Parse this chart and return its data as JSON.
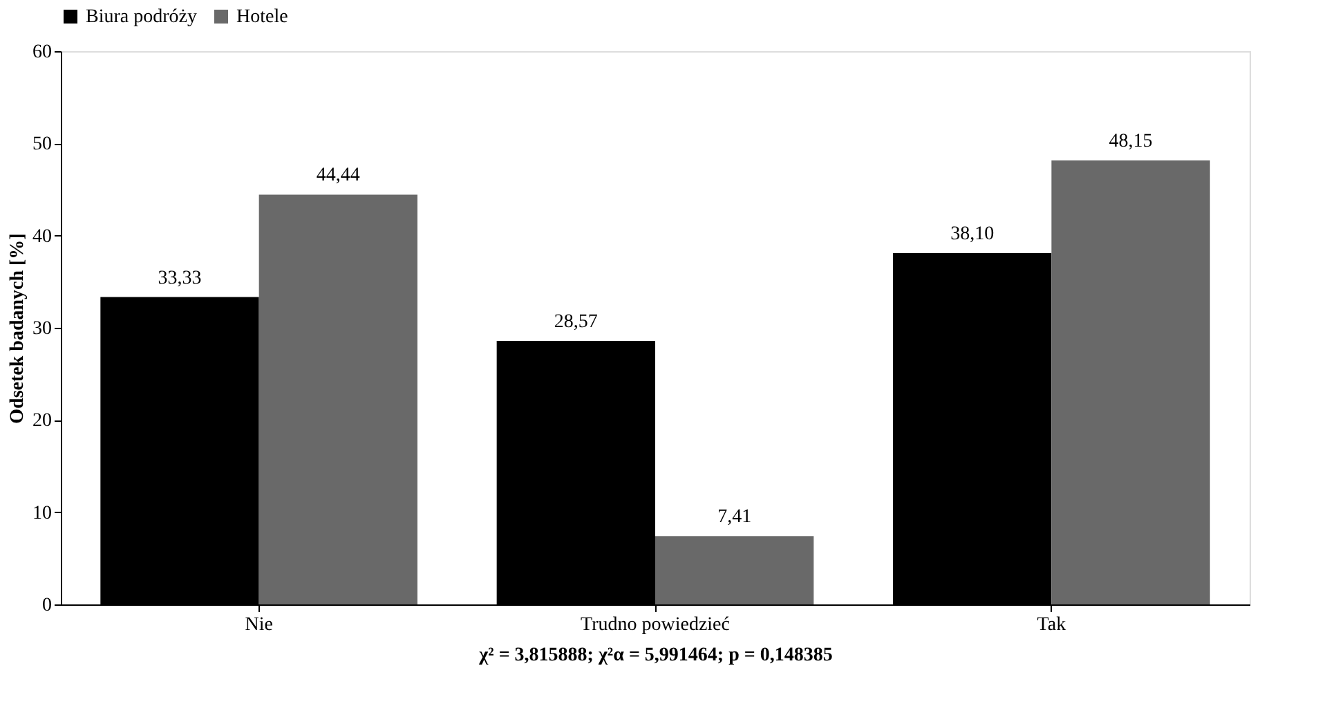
{
  "chart_data": {
    "type": "bar",
    "ylabel": "Odsetek badanych [%]",
    "xlabel": "χ² = 3,815888; χ²α = 5,991464; p = 0,148385",
    "categories": [
      "Nie",
      "Trudno powiedzieć",
      "Tak"
    ],
    "series": [
      {
        "name": "Biura podróży",
        "color": "#000000",
        "values": [
          33.33,
          28.57,
          38.1
        ],
        "value_labels": [
          "33,33",
          "28,57",
          "38,10"
        ]
      },
      {
        "name": "Hotele",
        "color": "#696969",
        "values": [
          44.44,
          7.41,
          48.15
        ],
        "value_labels": [
          "44,44",
          "7,41",
          "48,15"
        ]
      }
    ],
    "ylim": [
      0,
      60
    ],
    "yticks": [
      0,
      10,
      20,
      30,
      40,
      50,
      60
    ],
    "grid": false,
    "legend": "top"
  }
}
